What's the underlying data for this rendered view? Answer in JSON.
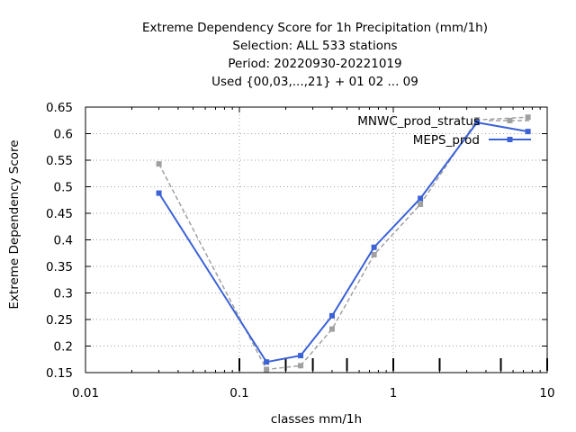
{
  "chart_data": {
    "type": "line",
    "title_lines": [
      "Extreme Dependency Score  for 1h Precipitation (mm/1h)",
      "Selection: ALL    533 stations",
      "Period: 20220930-20221019",
      "Used {00,03,...,21} + 01 02 ... 09"
    ],
    "xlabel": "classes mm/1h",
    "ylabel": "Extreme Dependency Score",
    "x_scale": "log",
    "xlim": [
      0.01,
      10
    ],
    "ylim": [
      0.15,
      0.65
    ],
    "x_ticks": [
      0.01,
      0.1,
      1,
      10
    ],
    "x_tick_labels": [
      "0.01",
      "0.1",
      "1",
      "10"
    ],
    "y_ticks": [
      0.15,
      0.2,
      0.25,
      0.3,
      0.35,
      0.4,
      0.45,
      0.5,
      0.55,
      0.6,
      0.65
    ],
    "y_tick_labels": [
      "0.15",
      "0.2",
      "0.25",
      "0.3",
      "0.35",
      "0.4",
      "0.45",
      "0.5",
      "0.55",
      "0.6",
      "0.65"
    ],
    "grid": true,
    "legend_position": "top-right",
    "class_markers": [
      0.1,
      0.2,
      0.3,
      0.5,
      1,
      2,
      5,
      10
    ],
    "series": [
      {
        "name": "MNWC_prod_stratus",
        "color": "#a0a0a0",
        "style": "dashed",
        "x": [
          0.03,
          0.15,
          0.25,
          0.4,
          0.75,
          1.5,
          3.5,
          7.5
        ],
        "y": [
          0.543,
          0.156,
          0.163,
          0.232,
          0.372,
          0.467,
          0.626,
          0.631
        ]
      },
      {
        "name": "MEPS_prod",
        "color": "#3b62d6",
        "style": "solid",
        "x": [
          0.03,
          0.15,
          0.25,
          0.4,
          0.75,
          1.5,
          3.5,
          7.5
        ],
        "y": [
          0.488,
          0.17,
          0.182,
          0.257,
          0.386,
          0.478,
          0.621,
          0.604
        ]
      }
    ]
  }
}
